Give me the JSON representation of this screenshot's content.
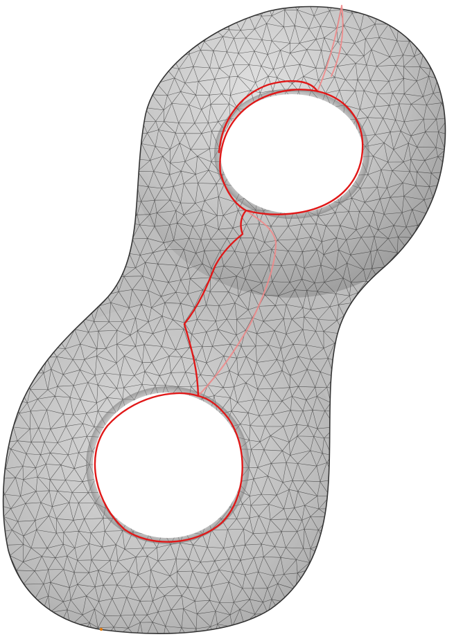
{
  "figure": {
    "subject": "genus-two-surface-triangle-mesh",
    "colors": {
      "background": "#ffffff",
      "surface_light": "#e2e2e2",
      "surface_mid": "#bdbdbd",
      "surface_dark": "#8a8a8a",
      "mesh_line": "#2a2a2a",
      "outline": "#333333",
      "cut_path": "#e01818",
      "cut_path_hidden": "#f08a8a",
      "marker": "#e07a10"
    },
    "mesh": {
      "columns": 34,
      "rows": 48
    },
    "cut_paths": [
      "front-cut",
      "back-cut",
      "upper-hole-rim",
      "lower-hole-rim",
      "top-seam"
    ]
  }
}
